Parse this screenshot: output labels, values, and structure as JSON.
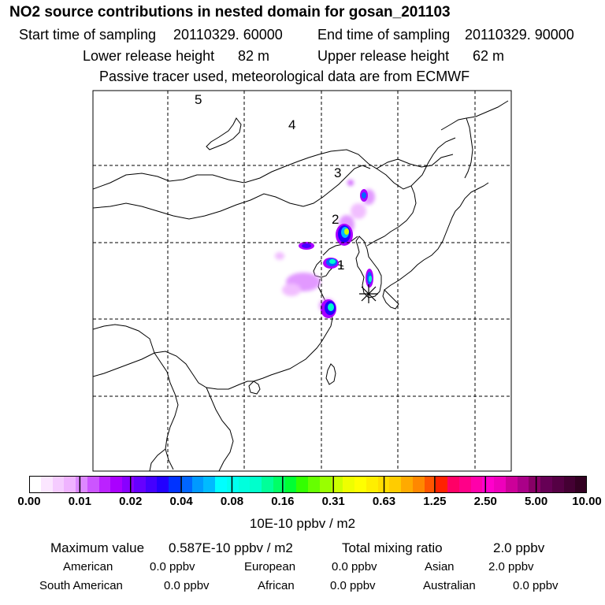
{
  "title": "NO2 source contributions in nested domain for gosan_201103",
  "header": {
    "start_label": "Start time of sampling",
    "start_value": "20110329. 60000",
    "end_label": "End time of sampling",
    "end_value": "20110329. 90000",
    "lower_label": "Lower release height",
    "lower_value": "82 m",
    "upper_label": "Upper release height",
    "upper_value": "62 m",
    "tracer_note": "Passive tracer used, meteorological data are from ECMWF"
  },
  "map": {
    "labels": [
      "1",
      "2",
      "3",
      "4",
      "5"
    ],
    "receptor_symbol": "receptor-star",
    "grid_style": "dashed"
  },
  "colorbar": {
    "ticks": [
      "0.00",
      "0.01",
      "0.02",
      "0.04",
      "0.08",
      "0.16",
      "0.31",
      "0.63",
      "1.25",
      "2.50",
      "5.00",
      "10.00"
    ],
    "unit": "10E-10 ppbv / m2",
    "colors": [
      "#ffffff",
      "#fbe6ff",
      "#f5ccff",
      "#efb3ff",
      "#dd88ff",
      "#cc55ff",
      "#bb22ff",
      "#aa00ff",
      "#8800ff",
      "#6600ff",
      "#4400ff",
      "#2200ff",
      "#0033ff",
      "#0066ff",
      "#0099ff",
      "#00bbff",
      "#00ffff",
      "#00ffee",
      "#00ffdd",
      "#00ffcc",
      "#00ff99",
      "#00ff66",
      "#00ff33",
      "#33ff00",
      "#66ff00",
      "#99ff00",
      "#ccff00",
      "#eeff00",
      "#ffff00",
      "#ffee00",
      "#ffdd00",
      "#ffcc00",
      "#ffaa00",
      "#ff8800",
      "#ff5500",
      "#ff2200",
      "#ff0066",
      "#ff0088",
      "#ff00aa",
      "#ff00cc",
      "#ee00bb",
      "#cc0099",
      "#aa0088",
      "#880066",
      "#660055",
      "#550044",
      "#440033",
      "#330022"
    ]
  },
  "stats": {
    "max_label": "Maximum value",
    "max_value": "0.587E-10 ppbv / m2",
    "total_label": "Total mixing ratio",
    "total_value": "2.0 ppbv",
    "regions": [
      {
        "name": "American",
        "value": "0.0 ppbv"
      },
      {
        "name": "European",
        "value": "0.0 ppbv"
      },
      {
        "name": "Asian",
        "value": "2.0 ppbv"
      },
      {
        "name": "South American",
        "value": "0.0 ppbv"
      },
      {
        "name": "African",
        "value": "0.0 ppbv"
      },
      {
        "name": "Australian",
        "value": "0.0 ppbv"
      }
    ]
  }
}
